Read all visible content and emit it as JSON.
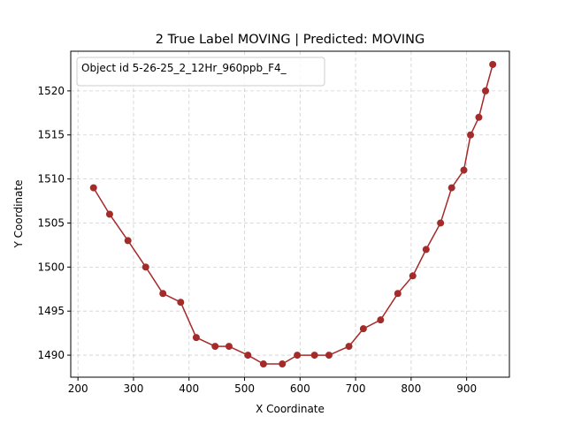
{
  "chart_data": {
    "type": "line",
    "title": "2 True Label MOVING | Predicted: MOVING",
    "xlabel": "X Coordinate",
    "ylabel": "Y Coordinate",
    "legend_text": "Object id 5-26-25_2_12Hr_960ppb_F4_",
    "legend_placement": "top-left",
    "xlim": [
      187,
      977
    ],
    "ylim": [
      1487.5,
      1524.5
    ],
    "xticks": [
      200,
      300,
      400,
      500,
      600,
      700,
      800,
      900
    ],
    "yticks": [
      1490,
      1495,
      1500,
      1505,
      1510,
      1515,
      1520
    ],
    "grid": true,
    "line_color": "#a52a2a",
    "series": [
      {
        "x": [
          228,
          257,
          290,
          322,
          353,
          385,
          413,
          447,
          472,
          506,
          534,
          568,
          595,
          626,
          652,
          688,
          714,
          745,
          776,
          803,
          827,
          853,
          873,
          895,
          907,
          922,
          934,
          947
        ],
        "y": [
          1509,
          1506,
          1503,
          1500,
          1497,
          1496,
          1492,
          1491,
          1491,
          1490,
          1489,
          1489,
          1490,
          1490,
          1490,
          1491,
          1493,
          1494,
          1497,
          1499,
          1502,
          1505,
          1509,
          1511,
          1515,
          1517,
          1520,
          1523
        ]
      }
    ]
  }
}
